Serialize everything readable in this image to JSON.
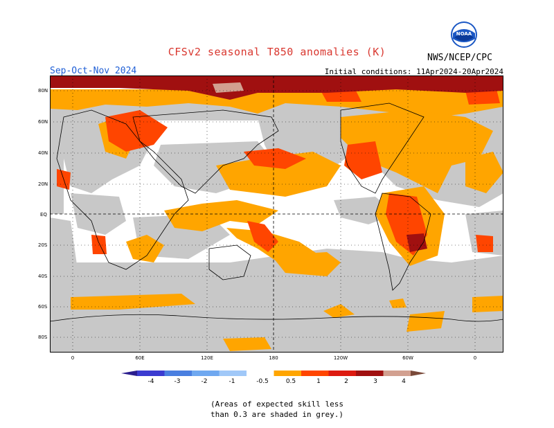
{
  "header": {
    "title": "CFSv2 seasonal T850 anomalies (K)",
    "season": "Sep-Oct-Nov 2024",
    "initial_conditions": "Initial conditions: 11Apr2024-20Apr2024",
    "organization": "NWS/NCEP/CPC",
    "logo_text": "NOAA"
  },
  "map": {
    "lat_labels": [
      "80N",
      "60N",
      "40N",
      "20N",
      "EQ",
      "20S",
      "40S",
      "60S",
      "80S"
    ],
    "lon_labels": [
      "0",
      "60E",
      "120E",
      "180",
      "120W",
      "60W",
      "0"
    ],
    "colors": {
      "skill_grey": "#c8c8c8",
      "anom_0_5_1": "#ffa500",
      "anom_1_2": "#ff4500",
      "anom_2_3": "#b22222",
      "anom_3_4": "#8b0000"
    }
  },
  "legend": {
    "labels": [
      "-4",
      "-3",
      "-2",
      "-1",
      "-0.5",
      "0.5",
      "1",
      "2",
      "3",
      "4"
    ],
    "colors": [
      "#2b1e8e",
      "#3b3bd0",
      "#4a7fe0",
      "#6fa8f0",
      "#a0c8f8",
      "#ffffff",
      "#ffa500",
      "#ff4500",
      "#dd1a10",
      "#a01010",
      "#d2a090",
      "#7a4a3a"
    ]
  },
  "note": {
    "line1": "(Areas of expected skill less",
    "line2": "than 0.3 are shaded in grey.)"
  }
}
